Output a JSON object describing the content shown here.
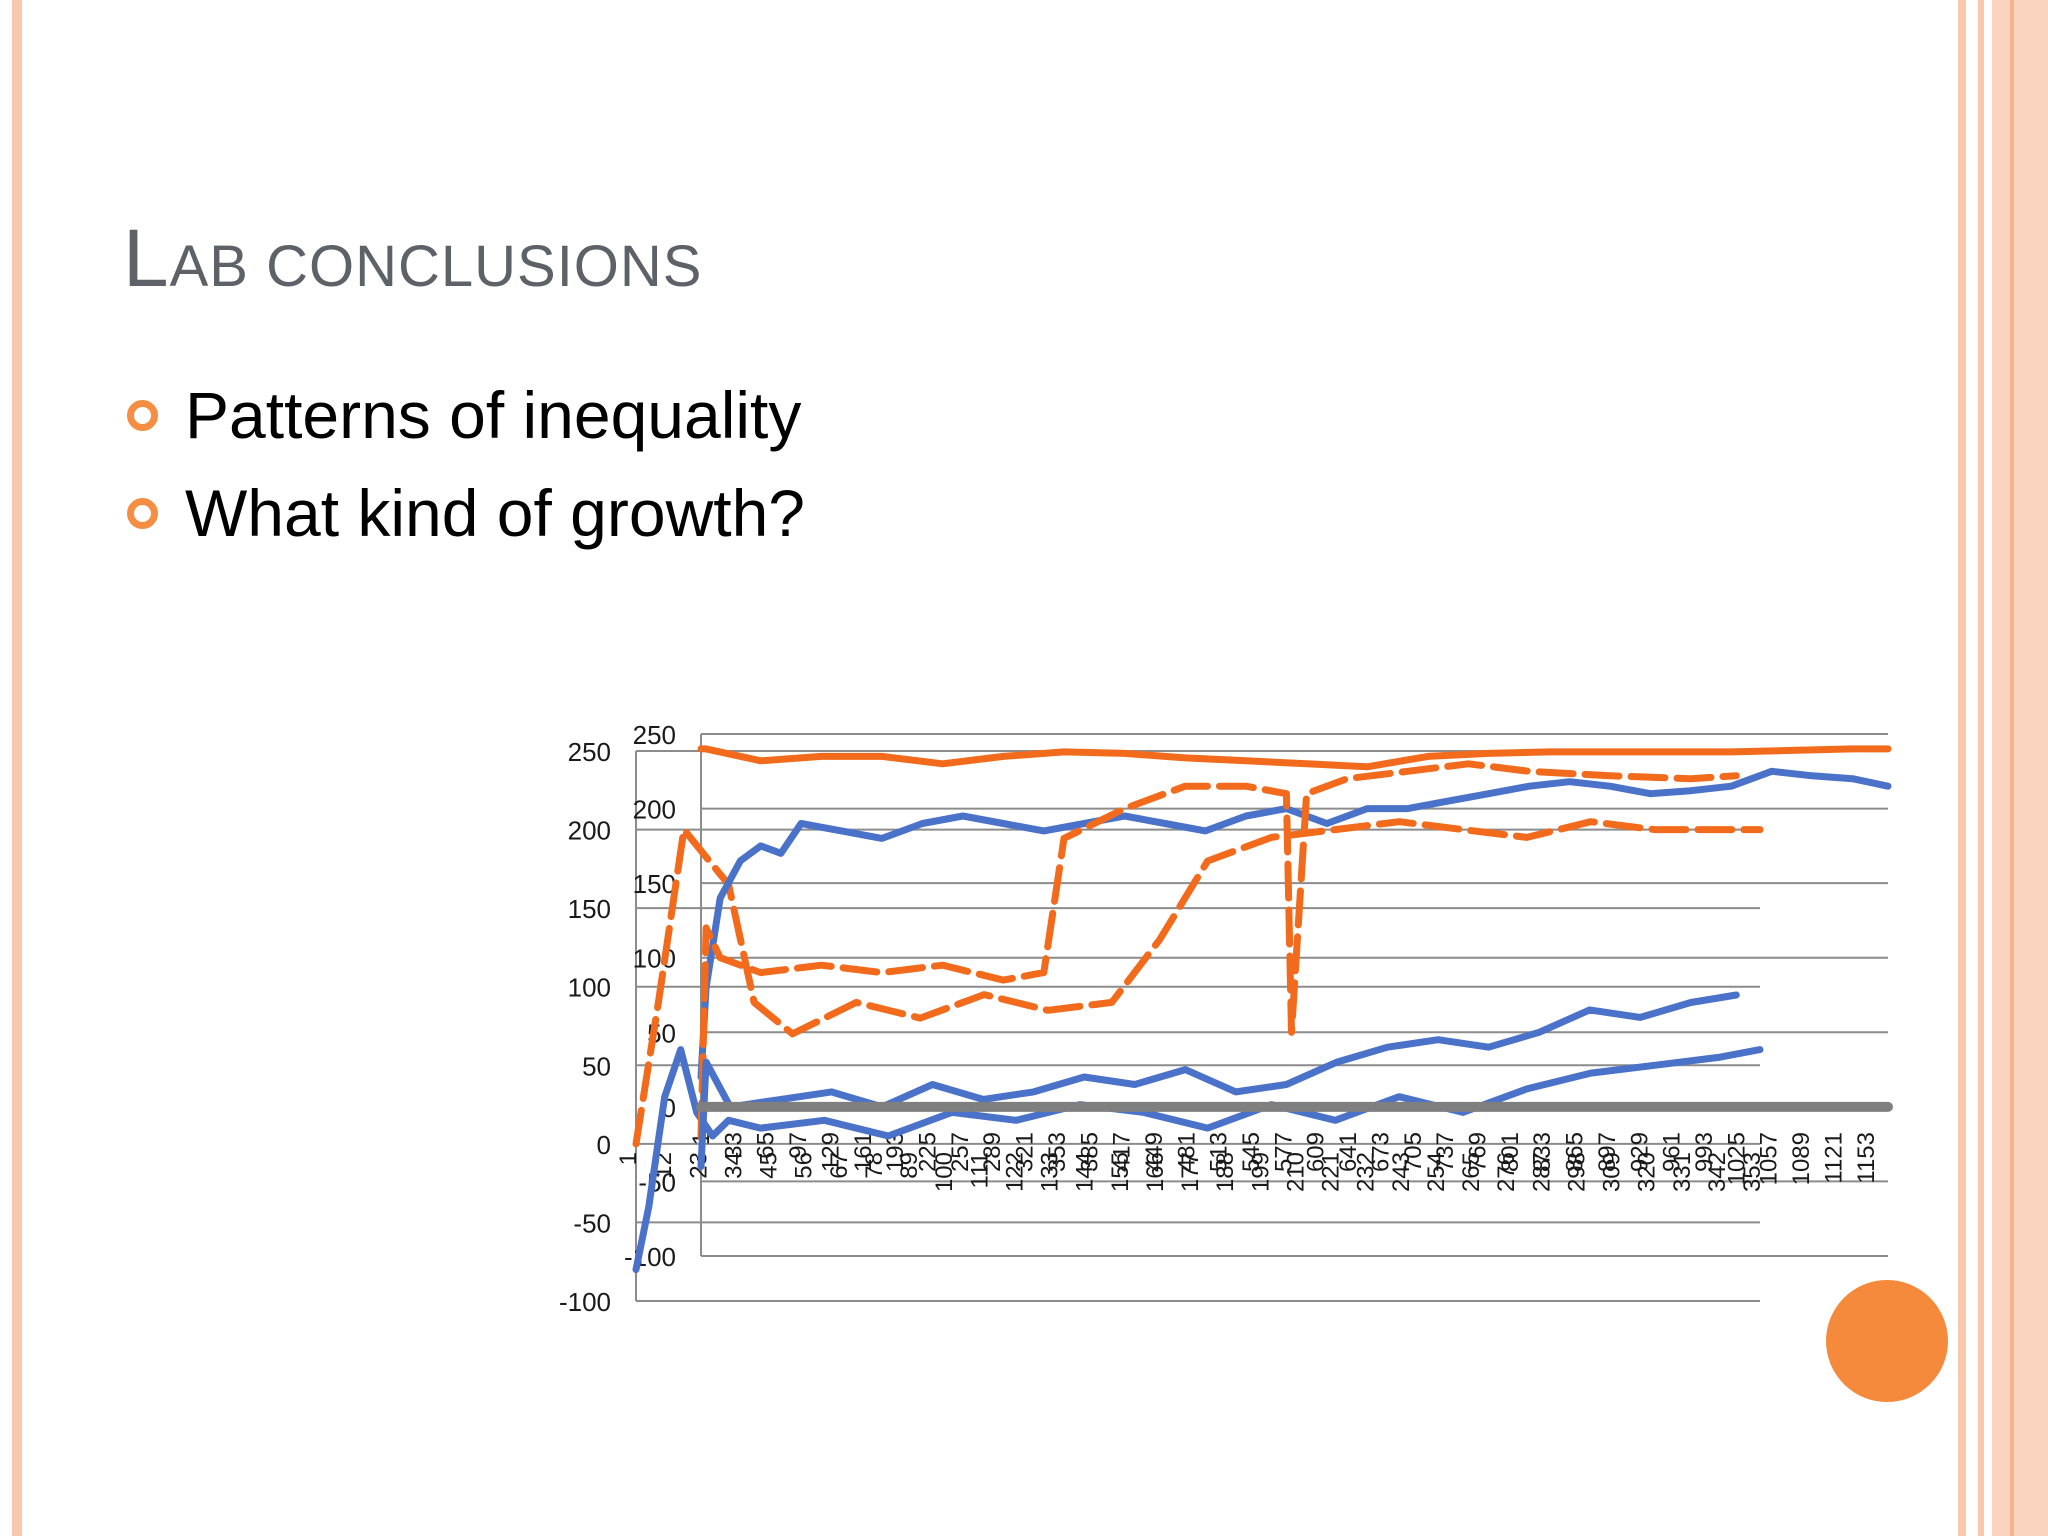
{
  "slide": {
    "title_first": "L",
    "title_rest": "AB CONCLUSIONS",
    "bullets": [
      "Patterns of inequality",
      "What kind of growth?"
    ],
    "colors": {
      "accent": "#f58e43",
      "stripe": "#f9c9ad",
      "title": "#5e6168",
      "series_blue": "#4a72c8",
      "series_orange": "#f26b1d",
      "zero_line": "#7f7f7f"
    }
  },
  "chart_data": {
    "type": "line",
    "title": "",
    "xlabel": "",
    "ylabel": "",
    "grid": true,
    "legend": "none",
    "left_axis": {
      "ylim": [
        -100,
        250
      ],
      "ticks": [
        "250",
        "200",
        "150",
        "100",
        "50",
        "0",
        "-50",
        "-100"
      ]
    },
    "right_axis": {
      "ylim": [
        -100,
        250
      ],
      "ticks": [
        "250",
        "200",
        "150",
        "100",
        "50",
        "0",
        "-50",
        "-100"
      ]
    },
    "x_categories_visible": [
      "1",
      "12",
      "23",
      "34",
      "45",
      "56",
      "67",
      "78",
      "89",
      "100",
      "111",
      "122",
      "133",
      "144",
      "155",
      "166",
      "177",
      "188",
      "199",
      "210",
      "221",
      "232",
      "243",
      "254",
      "265",
      "276",
      "287",
      "298",
      "309",
      "320",
      "331",
      "342",
      "353"
    ],
    "x_categories_visible_2": [
      "1",
      "33",
      "65",
      "97",
      "129",
      "161",
      "193",
      "225",
      "257",
      "289",
      "321",
      "353",
      "385",
      "417",
      "449",
      "481",
      "513",
      "545",
      "577",
      "609",
      "641",
      "673",
      "705",
      "737",
      "769",
      "801",
      "833",
      "865",
      "897",
      "929",
      "961",
      "993",
      "1025",
      "1057",
      "1089",
      "1121",
      "1153"
    ],
    "series": [
      {
        "axis": "left",
        "color": "#f26b1d",
        "style": "dashed",
        "x": [
          1,
          8,
          16,
          24,
          30,
          38,
          50,
          70,
          90,
          110,
          130,
          150,
          165,
          180,
          200,
          220,
          240,
          260,
          280,
          300,
          320,
          340,
          353
        ],
        "y": [
          0,
          90,
          200,
          180,
          165,
          90,
          70,
          90,
          80,
          95,
          85,
          90,
          130,
          180,
          195,
          200,
          205,
          200,
          195,
          205,
          200,
          200,
          200
        ]
      },
      {
        "axis": "left",
        "color": "#4a72c8",
        "style": "solid",
        "x": [
          1,
          5,
          10,
          15,
          20,
          25,
          30,
          40,
          60,
          80,
          100,
          120,
          140,
          160,
          180,
          200,
          220,
          240,
          260,
          280,
          300,
          320,
          340,
          353
        ],
        "y": [
          -80,
          -40,
          30,
          60,
          20,
          5,
          15,
          10,
          15,
          5,
          20,
          15,
          25,
          20,
          10,
          25,
          15,
          30,
          20,
          35,
          45,
          50,
          55,
          60
        ]
      },
      {
        "axis": "right",
        "color": "#f26b1d",
        "style": "solid",
        "x": [
          1,
          6,
          60,
          120,
          180,
          240,
          300,
          360,
          420,
          480,
          540,
          600,
          660,
          720,
          780,
          840,
          900,
          960,
          1020,
          1080,
          1140,
          1175
        ],
        "y": [
          240,
          240,
          232,
          235,
          235,
          230,
          235,
          238,
          237,
          234,
          232,
          230,
          228,
          235,
          237,
          238,
          238,
          238,
          238,
          239,
          240,
          240
        ]
      },
      {
        "axis": "right",
        "color": "#4a72c8",
        "style": "solid",
        "x": [
          1,
          6,
          20,
          40,
          60,
          80,
          100,
          140,
          180,
          220,
          260,
          300,
          340,
          380,
          420,
          460,
          500,
          540,
          580,
          620,
          660,
          700,
          740,
          780,
          820,
          860,
          900,
          940,
          980,
          1020,
          1060,
          1100,
          1140,
          1175
        ],
        "y": [
          20,
          80,
          140,
          165,
          175,
          170,
          190,
          185,
          180,
          190,
          195,
          190,
          185,
          190,
          195,
          190,
          185,
          195,
          200,
          190,
          200,
          200,
          205,
          210,
          215,
          218,
          215,
          210,
          212,
          215,
          225,
          222,
          220,
          215
        ]
      },
      {
        "axis": "right",
        "color": "#f26b1d",
        "style": "dashed",
        "x": [
          1,
          6,
          20,
          60,
          120,
          180,
          240,
          300,
          340,
          360,
          420,
          480,
          540,
          580,
          585,
          600,
          640,
          700,
          760,
          820,
          900,
          980,
          1025
        ],
        "y": [
          -20,
          120,
          100,
          90,
          95,
          90,
          95,
          85,
          90,
          180,
          200,
          215,
          215,
          210,
          50,
          210,
          220,
          225,
          230,
          225,
          222,
          220,
          222
        ]
      },
      {
        "axis": "right",
        "color": "#4a72c8",
        "style": "solid",
        "x": [
          1,
          6,
          30,
          80,
          130,
          180,
          230,
          280,
          330,
          380,
          430,
          480,
          530,
          580,
          630,
          680,
          730,
          780,
          830,
          880,
          930,
          980,
          1025
        ],
        "y": [
          -40,
          30,
          0,
          5,
          10,
          0,
          15,
          5,
          10,
          20,
          15,
          25,
          10,
          15,
          30,
          40,
          45,
          40,
          50,
          65,
          60,
          70,
          75
        ]
      },
      {
        "axis": "right",
        "color": "#7f7f7f",
        "style": "solid",
        "x": [
          1,
          1175
        ],
        "y": [
          0,
          0
        ]
      }
    ]
  }
}
